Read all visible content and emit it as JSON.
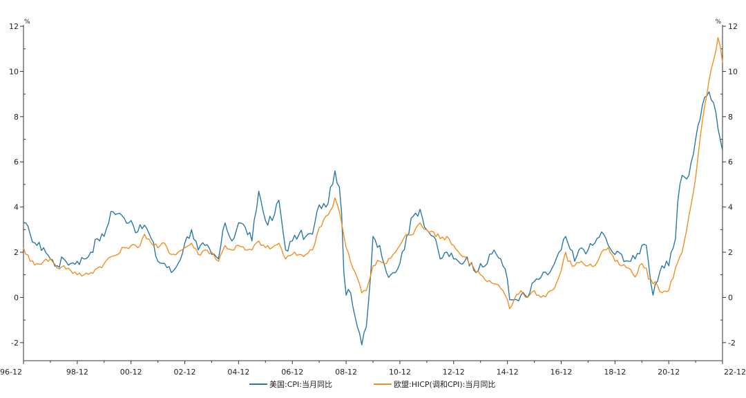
{
  "chart_data": {
    "type": "line",
    "title": "",
    "xlabel": "",
    "ylabel_left": "%",
    "ylabel_right": "%",
    "xlim": [
      "1996-12",
      "2022-12"
    ],
    "ylim": [
      -2.8,
      12
    ],
    "yticks": [
      -2,
      0,
      2,
      4,
      6,
      8,
      10,
      12
    ],
    "xticks": [
      "96-12",
      "98-12",
      "00-12",
      "02-12",
      "04-12",
      "06-12",
      "08-12",
      "10-12",
      "12-12",
      "14-12",
      "16-12",
      "18-12",
      "20-12",
      "22-12"
    ],
    "grid": false,
    "legend_position": "bottom",
    "series": [
      {
        "name": "美国:CPI:当月同比",
        "color": "#2878a8",
        "points": [
          [
            "1996-12",
            3.3
          ],
          [
            "1997-03",
            2.8
          ],
          [
            "1997-06",
            2.3
          ],
          [
            "1997-09",
            2.2
          ],
          [
            "1997-12",
            1.7
          ],
          [
            "1998-03",
            1.4
          ],
          [
            "1998-06",
            1.7
          ],
          [
            "1998-09",
            1.5
          ],
          [
            "1998-12",
            1.6
          ],
          [
            "1999-03",
            1.7
          ],
          [
            "1999-06",
            2.0
          ],
          [
            "1999-09",
            2.6
          ],
          [
            "1999-12",
            2.7
          ],
          [
            "2000-03",
            3.8
          ],
          [
            "2000-06",
            3.7
          ],
          [
            "2000-09",
            3.5
          ],
          [
            "2000-12",
            3.4
          ],
          [
            "2001-03",
            2.9
          ],
          [
            "2001-06",
            3.2
          ],
          [
            "2001-09",
            2.6
          ],
          [
            "2001-12",
            1.6
          ],
          [
            "2002-03",
            1.5
          ],
          [
            "2002-06",
            1.1
          ],
          [
            "2002-09",
            1.5
          ],
          [
            "2002-12",
            2.4
          ],
          [
            "2003-03",
            3.0
          ],
          [
            "2003-06",
            2.1
          ],
          [
            "2003-09",
            2.3
          ],
          [
            "2003-12",
            1.9
          ],
          [
            "2004-03",
            1.7
          ],
          [
            "2004-06",
            3.3
          ],
          [
            "2004-09",
            2.5
          ],
          [
            "2004-12",
            3.3
          ],
          [
            "2005-03",
            3.1
          ],
          [
            "2005-06",
            2.5
          ],
          [
            "2005-09",
            4.7
          ],
          [
            "2005-12",
            3.4
          ],
          [
            "2006-03",
            3.4
          ],
          [
            "2006-06",
            4.3
          ],
          [
            "2006-09",
            2.1
          ],
          [
            "2006-12",
            2.5
          ],
          [
            "2007-03",
            2.8
          ],
          [
            "2007-06",
            2.7
          ],
          [
            "2007-09",
            2.8
          ],
          [
            "2007-12",
            4.1
          ],
          [
            "2008-03",
            4.0
          ],
          [
            "2008-06",
            5.0
          ],
          [
            "2008-07",
            5.6
          ],
          [
            "2008-09",
            4.9
          ],
          [
            "2008-10",
            3.7
          ],
          [
            "2008-11",
            1.1
          ],
          [
            "2008-12",
            0.1
          ],
          [
            "2009-02",
            0.2
          ],
          [
            "2009-03",
            -0.4
          ],
          [
            "2009-05",
            -1.3
          ],
          [
            "2009-07",
            -2.1
          ],
          [
            "2009-09",
            -1.3
          ],
          [
            "2009-10",
            -0.2
          ],
          [
            "2009-12",
            2.7
          ],
          [
            "2010-03",
            2.3
          ],
          [
            "2010-06",
            1.1
          ],
          [
            "2010-09",
            1.1
          ],
          [
            "2010-12",
            1.5
          ],
          [
            "2011-03",
            2.7
          ],
          [
            "2011-06",
            3.6
          ],
          [
            "2011-09",
            3.9
          ],
          [
            "2011-12",
            3.0
          ],
          [
            "2012-03",
            2.7
          ],
          [
            "2012-06",
            1.7
          ],
          [
            "2012-09",
            2.0
          ],
          [
            "2012-12",
            1.7
          ],
          [
            "2013-03",
            1.5
          ],
          [
            "2013-06",
            1.8
          ],
          [
            "2013-09",
            1.2
          ],
          [
            "2013-12",
            1.5
          ],
          [
            "2014-03",
            1.5
          ],
          [
            "2014-06",
            2.1
          ],
          [
            "2014-09",
            1.7
          ],
          [
            "2014-12",
            0.8
          ],
          [
            "2015-01",
            -0.1
          ],
          [
            "2015-03",
            -0.1
          ],
          [
            "2015-06",
            0.1
          ],
          [
            "2015-09",
            0.0
          ],
          [
            "2015-12",
            0.7
          ],
          [
            "2016-03",
            0.9
          ],
          [
            "2016-06",
            1.0
          ],
          [
            "2016-09",
            1.5
          ],
          [
            "2016-12",
            2.1
          ],
          [
            "2017-02",
            2.7
          ],
          [
            "2017-03",
            2.4
          ],
          [
            "2017-06",
            1.6
          ],
          [
            "2017-09",
            2.2
          ],
          [
            "2017-12",
            2.1
          ],
          [
            "2018-03",
            2.4
          ],
          [
            "2018-06",
            2.9
          ],
          [
            "2018-09",
            2.3
          ],
          [
            "2018-12",
            1.9
          ],
          [
            "2019-03",
            1.9
          ],
          [
            "2019-06",
            1.6
          ],
          [
            "2019-09",
            1.7
          ],
          [
            "2019-12",
            2.3
          ],
          [
            "2020-02",
            2.3
          ],
          [
            "2020-03",
            1.5
          ],
          [
            "2020-05",
            0.1
          ],
          [
            "2020-06",
            0.6
          ],
          [
            "2020-09",
            1.4
          ],
          [
            "2020-12",
            1.4
          ],
          [
            "2021-03",
            2.6
          ],
          [
            "2021-04",
            4.2
          ],
          [
            "2021-06",
            5.4
          ],
          [
            "2021-09",
            5.4
          ],
          [
            "2021-12",
            7.0
          ],
          [
            "2022-03",
            8.5
          ],
          [
            "2022-06",
            9.1
          ],
          [
            "2022-09",
            8.2
          ],
          [
            "2022-12",
            6.5
          ]
        ]
      },
      {
        "name": "欧盟:HICP(调和CPI):当月同比",
        "color": "#f28e1c",
        "points": [
          [
            "1996-12",
            2.2
          ],
          [
            "1997-03",
            1.6
          ],
          [
            "1997-06",
            1.5
          ],
          [
            "1997-09",
            1.6
          ],
          [
            "1997-12",
            1.7
          ],
          [
            "1998-03",
            1.3
          ],
          [
            "1998-06",
            1.4
          ],
          [
            "1998-09",
            1.2
          ],
          [
            "1998-12",
            1.0
          ],
          [
            "1999-03",
            1.0
          ],
          [
            "1999-06",
            1.1
          ],
          [
            "1999-09",
            1.3
          ],
          [
            "1999-12",
            1.5
          ],
          [
            "2000-03",
            1.8
          ],
          [
            "2000-06",
            1.9
          ],
          [
            "2000-09",
            2.2
          ],
          [
            "2000-12",
            2.3
          ],
          [
            "2001-03",
            2.2
          ],
          [
            "2001-06",
            2.8
          ],
          [
            "2001-09",
            2.4
          ],
          [
            "2001-12",
            2.2
          ],
          [
            "2002-03",
            2.4
          ],
          [
            "2002-06",
            1.9
          ],
          [
            "2002-09",
            2.0
          ],
          [
            "2002-12",
            2.2
          ],
          [
            "2003-03",
            2.4
          ],
          [
            "2003-06",
            1.9
          ],
          [
            "2003-09",
            2.1
          ],
          [
            "2003-12",
            2.0
          ],
          [
            "2004-03",
            1.6
          ],
          [
            "2004-06",
            2.3
          ],
          [
            "2004-09",
            2.1
          ],
          [
            "2004-12",
            2.3
          ],
          [
            "2005-03",
            2.1
          ],
          [
            "2005-06",
            2.1
          ],
          [
            "2005-09",
            2.5
          ],
          [
            "2005-12",
            2.2
          ],
          [
            "2006-03",
            2.2
          ],
          [
            "2006-06",
            2.4
          ],
          [
            "2006-09",
            1.7
          ],
          [
            "2006-12",
            1.9
          ],
          [
            "2007-03",
            1.9
          ],
          [
            "2007-06",
            1.9
          ],
          [
            "2007-09",
            2.1
          ],
          [
            "2007-12",
            3.1
          ],
          [
            "2008-03",
            3.6
          ],
          [
            "2008-06",
            4.0
          ],
          [
            "2008-07",
            4.4
          ],
          [
            "2008-09",
            3.8
          ],
          [
            "2008-12",
            2.2
          ],
          [
            "2009-03",
            1.3
          ],
          [
            "2009-06",
            0.6
          ],
          [
            "2009-07",
            0.2
          ],
          [
            "2009-09",
            0.3
          ],
          [
            "2009-12",
            1.4
          ],
          [
            "2010-03",
            1.6
          ],
          [
            "2010-06",
            1.5
          ],
          [
            "2010-09",
            1.9
          ],
          [
            "2010-12",
            2.3
          ],
          [
            "2011-03",
            2.8
          ],
          [
            "2011-06",
            2.8
          ],
          [
            "2011-09",
            3.3
          ],
          [
            "2011-12",
            3.0
          ],
          [
            "2012-03",
            2.9
          ],
          [
            "2012-06",
            2.6
          ],
          [
            "2012-09",
            2.7
          ],
          [
            "2012-12",
            2.3
          ],
          [
            "2013-03",
            1.9
          ],
          [
            "2013-06",
            1.7
          ],
          [
            "2013-09",
            1.3
          ],
          [
            "2013-12",
            1.0
          ],
          [
            "2014-03",
            0.7
          ],
          [
            "2014-06",
            0.6
          ],
          [
            "2014-09",
            0.4
          ],
          [
            "2014-12",
            -0.1
          ],
          [
            "2015-01",
            -0.5
          ],
          [
            "2015-03",
            -0.1
          ],
          [
            "2015-06",
            0.3
          ],
          [
            "2015-09",
            0.0
          ],
          [
            "2015-12",
            0.3
          ],
          [
            "2016-03",
            0.0
          ],
          [
            "2016-06",
            0.2
          ],
          [
            "2016-09",
            0.4
          ],
          [
            "2016-12",
            1.2
          ],
          [
            "2017-02",
            2.0
          ],
          [
            "2017-03",
            1.6
          ],
          [
            "2017-06",
            1.4
          ],
          [
            "2017-09",
            1.6
          ],
          [
            "2017-12",
            1.4
          ],
          [
            "2018-03",
            1.4
          ],
          [
            "2018-06",
            2.0
          ],
          [
            "2018-09",
            2.2
          ],
          [
            "2018-12",
            1.6
          ],
          [
            "2019-03",
            1.4
          ],
          [
            "2019-06",
            1.3
          ],
          [
            "2019-09",
            0.9
          ],
          [
            "2019-12",
            1.5
          ],
          [
            "2020-02",
            1.3
          ],
          [
            "2020-03",
            0.8
          ],
          [
            "2020-05",
            0.6
          ],
          [
            "2020-06",
            0.7
          ],
          [
            "2020-09",
            0.2
          ],
          [
            "2020-12",
            0.3
          ],
          [
            "2021-03",
            1.3
          ],
          [
            "2021-06",
            2.0
          ],
          [
            "2021-09",
            3.6
          ],
          [
            "2021-12",
            5.3
          ],
          [
            "2022-03",
            7.8
          ],
          [
            "2022-06",
            9.6
          ],
          [
            "2022-09",
            10.9
          ],
          [
            "2022-10",
            11.5
          ],
          [
            "2022-11",
            11.1
          ],
          [
            "2022-12",
            10.4
          ]
        ]
      }
    ]
  }
}
